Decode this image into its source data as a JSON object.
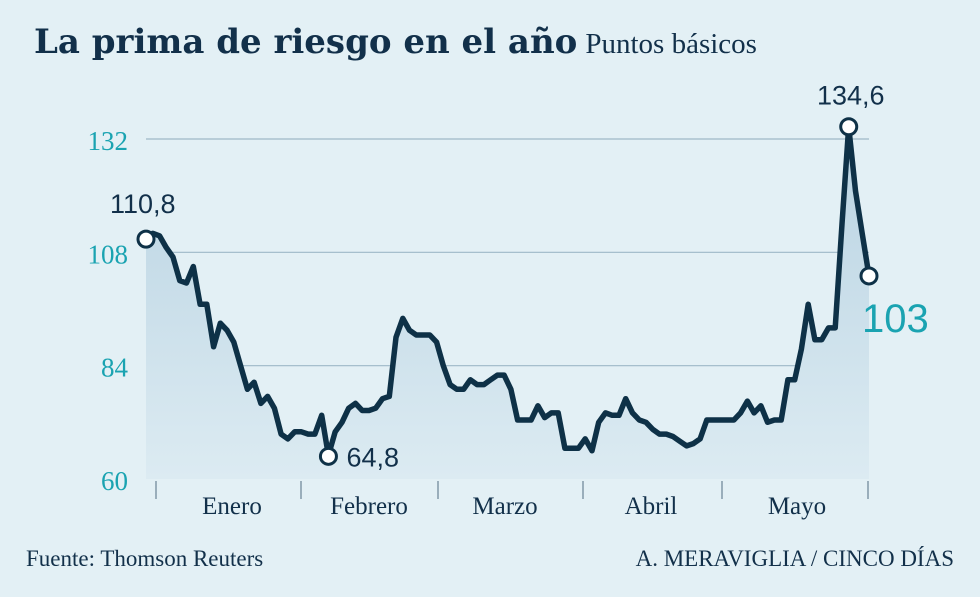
{
  "title": "La prima de riesgo en el año",
  "subtitle": "Puntos básicos",
  "footer": {
    "source": "Fuente: Thomson Reuters",
    "credit": "A. MERAVIGLIA / CINCO DÍAS"
  },
  "colors": {
    "background": "#e3f0f5",
    "line": "#0e3147",
    "area_top": "#b9d3e2",
    "area_bottom": "#dcebf2",
    "grid": "#9eb8c7",
    "axis_tick_text": "#1aa3b1",
    "text_dark": "#12304a",
    "accent_last": "#1aa3b1"
  },
  "chart_data": {
    "type": "area",
    "title": "La prima de riesgo en el año",
    "subtitle": "Puntos básicos",
    "xlabel": "",
    "ylabel": "",
    "ylim": [
      60,
      137
    ],
    "yticks": [
      60,
      84,
      108,
      132
    ],
    "ytick_labels": [
      "60",
      "84",
      "108",
      "132"
    ],
    "month_labels": [
      "Enero",
      "Febrero",
      "Marzo",
      "Abril",
      "Mayo"
    ],
    "grid": true,
    "legend": "none",
    "series": [
      {
        "values": [
          110.8,
          112,
          111.5,
          109,
          107,
          102,
          101.5,
          105,
          97,
          97,
          88,
          93,
          91.5,
          89,
          84,
          79,
          80.5,
          76,
          77.5,
          75,
          69.5,
          68.5,
          70,
          70,
          69.5,
          69.5,
          73.5,
          65,
          70,
          72,
          75,
          76,
          74.5,
          74.5,
          75,
          77,
          77.5,
          90,
          94,
          91.5,
          90.5,
          90.5,
          90.5,
          89,
          84,
          80,
          79,
          79,
          81,
          80,
          80,
          81,
          82,
          82,
          79,
          72.5,
          72.5,
          72.5,
          75.5,
          73,
          74,
          74,
          66.5,
          66.5,
          66.5,
          68.5,
          66,
          72,
          74,
          73.5,
          73.5,
          77,
          74,
          72.5,
          72,
          70.5,
          69.5,
          69.5,
          69,
          68,
          67,
          67.5,
          68.5,
          72.5,
          72.5,
          72.5,
          72.5,
          72.5,
          74,
          76.5,
          74,
          75.5,
          72,
          72.5,
          72.5,
          81,
          81,
          87.5,
          97,
          89.5,
          89.5,
          92,
          92,
          114,
          134.6,
          121,
          112,
          103
        ]
      }
    ],
    "annotations": [
      {
        "label": "110,8",
        "value": 110.8
      },
      {
        "label": "64,8",
        "value": 64.8
      },
      {
        "label": "134,6",
        "value": 134.6
      },
      {
        "label": "103",
        "value": 103
      }
    ]
  }
}
